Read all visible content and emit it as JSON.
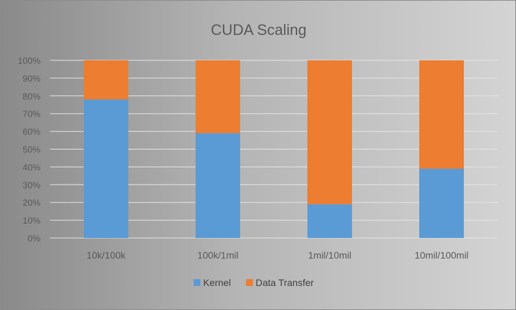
{
  "chart_data": {
    "type": "bar",
    "stacked": true,
    "percent": true,
    "title": "CUDA Scaling",
    "categories": [
      "10k/100k",
      "100k/1mil",
      "1mil/10mil",
      "10mil/100mil"
    ],
    "series": [
      {
        "name": "Kernel",
        "values": [
          78,
          59,
          19,
          39
        ],
        "color": "#5b9bd5"
      },
      {
        "name": "Data Transfer",
        "values": [
          22,
          41,
          81,
          61
        ],
        "color": "#ed7d31"
      }
    ],
    "y_ticks": [
      "0%",
      "10%",
      "20%",
      "30%",
      "40%",
      "50%",
      "60%",
      "70%",
      "80%",
      "90%",
      "100%"
    ],
    "ylim": [
      0,
      100
    ],
    "grid": true,
    "legend_position": "bottom",
    "xlabel": "",
    "ylabel": ""
  }
}
